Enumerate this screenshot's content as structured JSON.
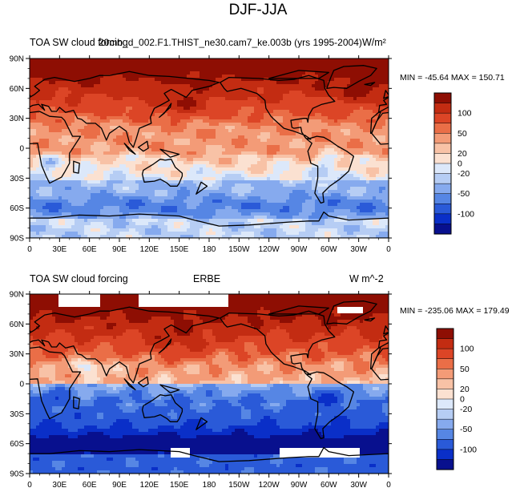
{
  "figure": {
    "title": "DJF-JJA"
  },
  "chart_data": [
    {
      "type": "heatmap",
      "left_title": "TOA SW cloud forcing",
      "center_title": "20mb_d_002.F1.THIST_ne30.cam7_ke.003b (yrs 1995-2004)",
      "units": "W/m²",
      "min_max": "MIN = -45.64  MAX = 150.71",
      "min": -45.64,
      "max": 150.71,
      "x_ticks": [
        "0",
        "30E",
        "60E",
        "90E",
        "120E",
        "150E",
        "180",
        "150W",
        "120W",
        "90W",
        "60W",
        "30W",
        "0"
      ],
      "y_ticks": [
        "90N",
        "60N",
        "30N",
        "0",
        "30S",
        "60S",
        "90S"
      ],
      "colorbar_levels": [
        -100,
        -50,
        -20,
        0,
        20,
        50,
        100
      ],
      "colorbar_labels": [
        "100",
        "50",
        "20",
        "0",
        "-20",
        "-50",
        "-100"
      ]
    },
    {
      "type": "heatmap",
      "left_title": "TOA SW cloud forcing",
      "center_title": "ERBE",
      "units": "W m^-2",
      "min_max": "MIN = -235.06  MAX = 179.49",
      "min": -235.06,
      "max": 179.49,
      "x_ticks": [
        "0",
        "30E",
        "60E",
        "90E",
        "120E",
        "150E",
        "180",
        "150W",
        "120W",
        "90W",
        "60W",
        "30W",
        "0"
      ],
      "y_ticks": [
        "90N",
        "60N",
        "30N",
        "0",
        "30S",
        "60S",
        "90S"
      ],
      "colorbar_levels": [
        -100,
        -50,
        -20,
        0,
        20,
        50,
        100
      ],
      "colorbar_labels": [
        "100",
        "50",
        "20",
        "0",
        "-20",
        "-50",
        "-100"
      ]
    }
  ],
  "colors": {
    "scale": [
      "#08108e",
      "#0a2fc8",
      "#2a5ad8",
      "#5686e4",
      "#86aaee",
      "#b6cdf4",
      "#dce8fa",
      "#fbe1d1",
      "#f8c2a6",
      "#f39b77",
      "#ea6e47",
      "#dc4526",
      "#c32c12",
      "#8e0e03"
    ]
  }
}
